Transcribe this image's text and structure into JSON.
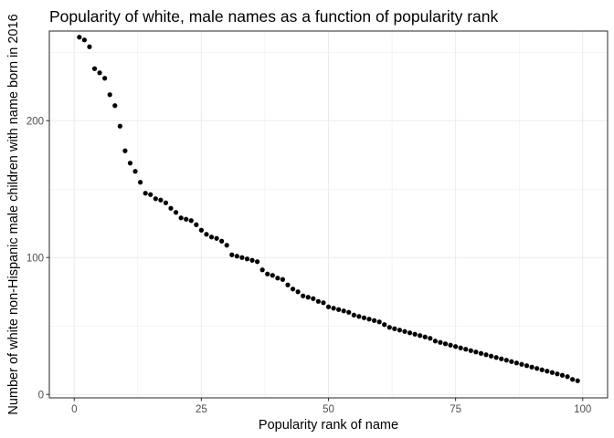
{
  "chart_data": {
    "type": "scatter",
    "title": "Popularity of white, male names as a function of popularity rank",
    "xlabel": "Popularity rank of name",
    "ylabel": "Number of white non-Hispanic male children with name born in 2016",
    "xlim": [
      -4.9,
      104.9
    ],
    "ylim": [
      -2.5,
      265.5
    ],
    "x_ticks": [
      0,
      25,
      50,
      75,
      100
    ],
    "y_ticks": [
      0,
      100,
      200
    ],
    "grid": true,
    "legend": "none",
    "point_color": "#000000",
    "x": [
      1,
      2,
      3,
      4,
      5,
      6,
      7,
      8,
      9,
      10,
      11,
      12,
      13,
      14,
      15,
      16,
      17,
      18,
      19,
      20,
      21,
      22,
      23,
      24,
      25,
      26,
      27,
      28,
      29,
      30,
      31,
      32,
      33,
      34,
      35,
      36,
      37,
      38,
      39,
      40,
      41,
      42,
      43,
      44,
      45,
      46,
      47,
      48,
      49,
      50,
      51,
      52,
      53,
      54,
      55,
      56,
      57,
      58,
      59,
      60,
      61,
      62,
      63,
      64,
      65,
      66,
      67,
      68,
      69,
      70,
      71,
      72,
      73,
      74,
      75,
      76,
      77,
      78,
      79,
      80,
      81,
      82,
      83,
      84,
      85,
      86,
      87,
      88,
      89,
      90,
      91,
      92,
      93,
      94,
      95,
      96,
      97,
      98,
      99
    ],
    "y": [
      261,
      259,
      254,
      238,
      235,
      231,
      219,
      211,
      196,
      178,
      169,
      163,
      155,
      147,
      146,
      143,
      142,
      140,
      136,
      133,
      129,
      128,
      127,
      124,
      120,
      117,
      115,
      114,
      112,
      109,
      102,
      101,
      100,
      99,
      98,
      97,
      91,
      88,
      87,
      85,
      84,
      80,
      77,
      75,
      72,
      71,
      70,
      68,
      67,
      64,
      63,
      62,
      61,
      60,
      58,
      57,
      56,
      55,
      54,
      53,
      51,
      49,
      48,
      47,
      46,
      45,
      44,
      43,
      42,
      41,
      39,
      38,
      37,
      36,
      35,
      34,
      33,
      32,
      31,
      30,
      29,
      28,
      27,
      26,
      25,
      24,
      23,
      22,
      21,
      20,
      19,
      18,
      17,
      16,
      15,
      14,
      13,
      11,
      10
    ]
  }
}
